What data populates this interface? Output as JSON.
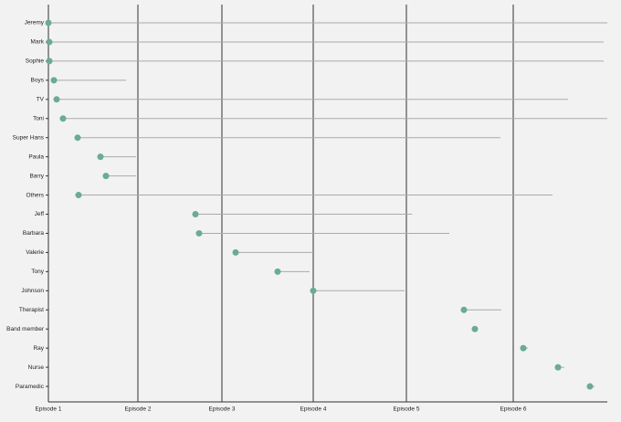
{
  "chart_data": {
    "type": "range",
    "categories": [
      "Jeremy",
      "Mark",
      "Sophie",
      "Boys",
      "TV",
      "Toni",
      "Super Hans",
      "Paula",
      "Barry",
      "Others",
      "Jeff",
      "Barbara",
      "Valerie",
      "Tony",
      "Johnson",
      "Therapist",
      "Band member",
      "Ray",
      "Nurse",
      "Paramedic"
    ],
    "start": [
      0,
      1,
      1,
      6,
      9,
      16,
      32,
      57,
      63,
      33,
      161,
      165,
      205,
      251,
      290,
      455,
      467,
      520,
      558,
      593
    ],
    "end": [
      612,
      608,
      608,
      85,
      569,
      612,
      495,
      96,
      96,
      552,
      398,
      439,
      290,
      286,
      390,
      496,
      467,
      525,
      565,
      598
    ],
    "color": "#6aab94",
    "line_color": "#aaaaaa",
    "xlim": [
      0,
      612
    ],
    "xticks": [
      {
        "value": 0,
        "label": "Episode 1"
      },
      {
        "value": 98,
        "label": "Episode 2"
      },
      {
        "value": 190,
        "label": "Episode 3"
      },
      {
        "value": 290,
        "label": "Episode 4"
      },
      {
        "value": 392,
        "label": "Episode 5"
      },
      {
        "value": 509,
        "label": "Episode 6"
      }
    ],
    "grid": true
  }
}
